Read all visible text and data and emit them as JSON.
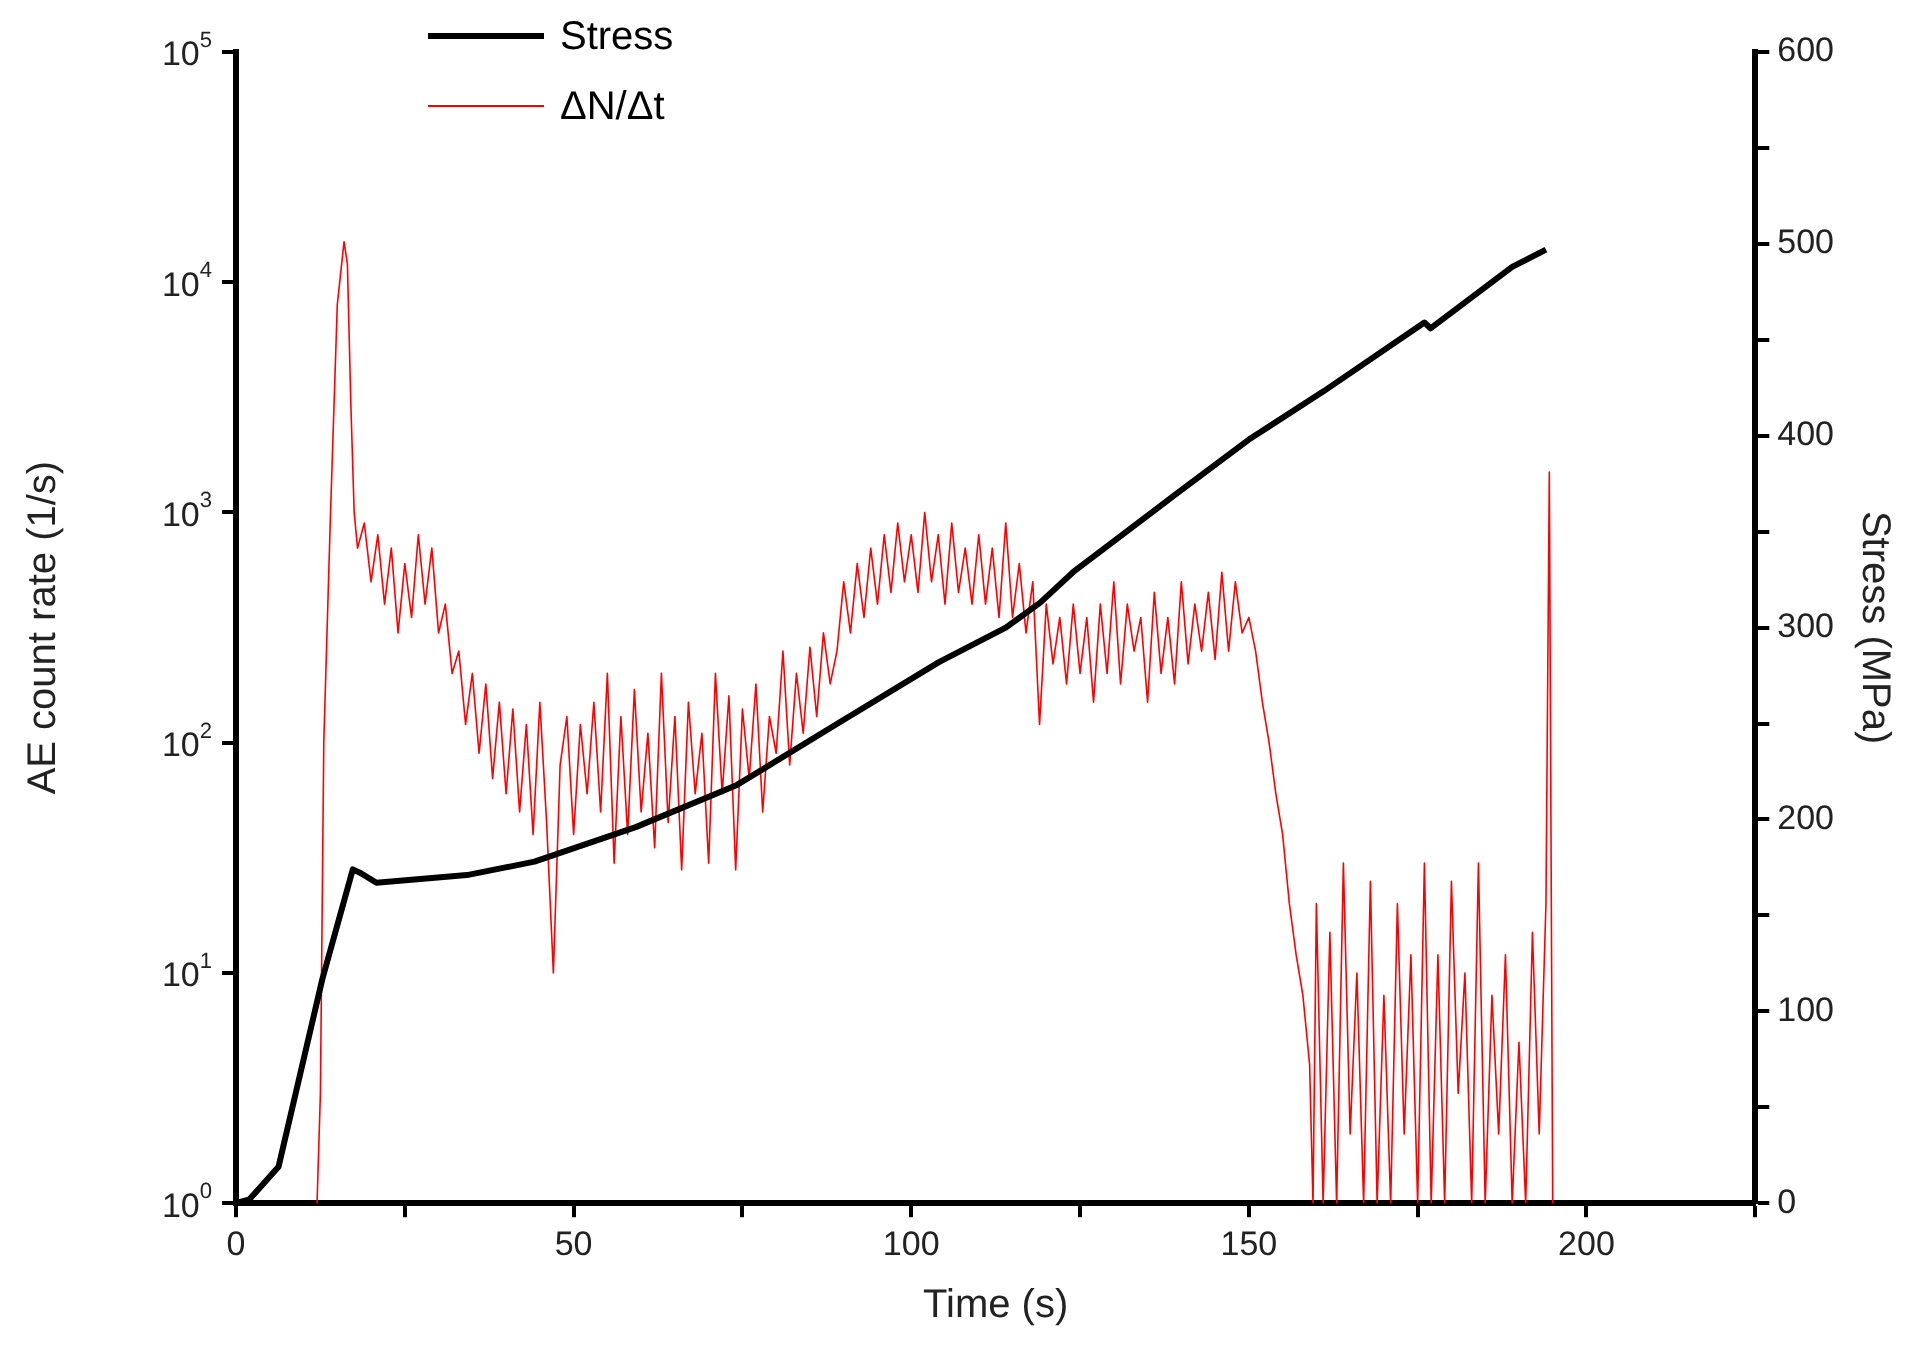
{
  "chart_data": {
    "type": "line",
    "xlabel": "Time (s)",
    "ylabel": "AE count rate (1/s)",
    "y2label": "Stress (MPa)",
    "xlim": [
      0,
      225
    ],
    "xticks": [
      0,
      {
        "value": 25,
        "label": null
      },
      50,
      {
        "value": 75,
        "label": null
      },
      100,
      {
        "value": 125,
        "label": null
      },
      150,
      {
        "value": 175,
        "label": null
      },
      200,
      {
        "value": 225,
        "label": null
      }
    ],
    "log": "y",
    "ylim": [
      1,
      100000
    ],
    "yticks": [
      {
        "value": 1,
        "label": "10$^{0}$"
      },
      {
        "value": 10,
        "label": "10$^{1}$"
      },
      {
        "value": 100,
        "label": "10$^{2}$"
      },
      {
        "value": 1000,
        "label": "10$^{3}$"
      },
      {
        "value": 10000,
        "label": "10$^{4}$"
      },
      {
        "value": 100000,
        "label": "10$^{5}$"
      }
    ],
    "y2lim": [
      0,
      600
    ],
    "y2ticks": [
      0,
      {
        "value": 50,
        "label": null
      },
      100,
      {
        "value": 150,
        "label": null
      },
      200,
      {
        "value": 250,
        "label": null
      },
      300,
      {
        "value": 350,
        "label": null
      },
      400,
      {
        "value": 450,
        "label": null
      },
      500,
      {
        "value": 550,
        "label": null
      },
      600
    ],
    "grid": false,
    "legend": "top left",
    "marker": "none",
    "line_style": "solid",
    "series": [
      {
        "name": "Stress",
        "color": "#000000",
        "axis": "y2",
        "x": [
          0,
          2,
          6.3,
          12.8,
          17.3,
          18.5,
          20.8,
          34.2,
          44.2,
          59.2,
          74.2,
          89.1,
          104.1,
          114,
          119.1,
          124,
          139,
          150,
          161,
          176,
          176.9,
          189,
          194
        ],
        "values": [
          0,
          2,
          19,
          117,
          174,
          172,
          167,
          171,
          178,
          196,
          218,
          250,
          282,
          300,
          313,
          329,
          369,
          398,
          423,
          459,
          456,
          488,
          497
        ]
      },
      {
        "name": "ΔN/Δt",
        "color": "#ff0000",
        "axis": "y",
        "x": [
          12,
          12.5,
          13,
          14,
          15,
          16,
          16.5,
          17,
          17.5,
          18,
          19,
          20,
          21,
          22,
          23,
          24,
          25,
          26,
          27,
          28,
          29,
          30,
          31,
          32,
          33,
          34,
          35,
          36,
          37,
          38,
          39,
          40,
          41,
          42,
          43,
          44,
          45,
          46,
          47,
          48,
          49,
          50,
          51,
          52,
          53,
          54,
          55,
          56,
          57,
          58,
          59,
          60,
          61,
          62,
          63,
          64,
          65,
          66,
          67,
          68,
          69,
          70,
          71,
          72,
          73,
          74,
          75,
          76,
          77,
          78,
          79,
          80,
          81,
          82,
          83,
          84,
          85,
          86,
          87,
          88,
          89,
          90,
          91,
          92,
          93,
          94,
          95,
          96,
          97,
          98,
          99,
          100,
          101,
          102,
          103,
          104,
          105,
          106,
          107,
          108,
          109,
          110,
          111,
          112,
          113,
          114,
          115,
          116,
          117,
          118,
          119,
          120,
          121,
          122,
          123,
          124,
          125,
          126,
          127,
          128,
          129,
          130,
          131,
          132,
          133,
          134,
          135,
          136,
          137,
          138,
          139,
          140,
          141,
          142,
          143,
          144,
          145,
          146,
          147,
          148,
          149,
          150,
          151,
          152,
          153,
          154,
          155,
          156,
          157,
          158,
          159,
          159.5,
          160,
          161,
          162,
          163,
          164,
          165,
          166,
          167,
          168,
          169,
          170,
          171,
          172,
          173,
          174,
          175,
          176,
          177,
          178,
          179,
          180,
          181,
          182,
          183,
          184,
          185,
          186,
          187,
          188,
          189,
          190,
          191,
          192,
          193,
          194,
          194.5,
          195
        ],
        "values": [
          1,
          3,
          100,
          1000,
          8000,
          15000,
          12000,
          3000,
          1000,
          700,
          900,
          500,
          800,
          400,
          700,
          300,
          600,
          350,
          800,
          400,
          700,
          300,
          400,
          200,
          250,
          120,
          200,
          90,
          180,
          70,
          150,
          60,
          140,
          50,
          120,
          40,
          150,
          45,
          10,
          80,
          130,
          40,
          120,
          60,
          150,
          50,
          200,
          30,
          130,
          40,
          170,
          50,
          110,
          35,
          200,
          45,
          130,
          28,
          150,
          60,
          110,
          30,
          200,
          60,
          160,
          28,
          140,
          70,
          180,
          50,
          130,
          90,
          250,
          80,
          200,
          110,
          260,
          130,
          300,
          180,
          250,
          500,
          300,
          600,
          350,
          700,
          400,
          800,
          450,
          900,
          500,
          800,
          450,
          1000,
          500,
          800,
          400,
          900,
          450,
          700,
          400,
          800,
          400,
          700,
          350,
          900,
          350,
          600,
          300,
          500,
          120,
          400,
          220,
          350,
          180,
          400,
          200,
          350,
          150,
          400,
          200,
          500,
          180,
          400,
          250,
          350,
          150,
          450,
          200,
          350,
          180,
          500,
          220,
          400,
          250,
          450,
          230,
          550,
          250,
          500,
          300,
          350,
          250,
          150,
          100,
          60,
          40,
          20,
          12,
          8,
          4,
          1,
          20,
          1,
          15,
          1,
          30,
          2,
          10,
          1,
          25,
          1,
          8,
          1,
          20,
          2,
          12,
          1,
          30,
          1,
          12,
          1,
          25,
          3,
          10,
          1,
          30,
          1,
          8,
          2,
          12,
          1,
          5,
          1,
          15,
          2,
          20,
          1500,
          1
        ]
      }
    ]
  }
}
